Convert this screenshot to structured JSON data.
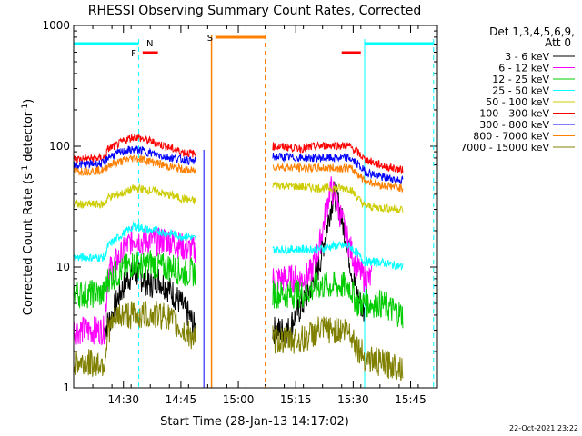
{
  "chart_data": {
    "type": "line",
    "title": "RHESSI Observing Summary Count Rates, Corrected",
    "xlabel": "Start Time (28-Jan-13 14:17:02)",
    "ylabel": "Corrected Count Rate (s",
    "ylabel_sup1": "-1",
    "ylabel_mid": " detector",
    "ylabel_sup2": "-1",
    "ylabel_end": ")",
    "y_scale": "log",
    "ylim": [
      1,
      1000
    ],
    "y_ticks": [
      "1",
      "10",
      "100",
      "1000"
    ],
    "x_ticks": [
      "14:30",
      "14:45",
      "15:00",
      "15:15",
      "15:30",
      "15:45"
    ],
    "xlim_minutes": [
      0,
      95
    ],
    "footer_date": "22-Oct-2021 23:22",
    "legend_header": [
      "Det 1,3,4,5,6,9,",
      "Att 0"
    ],
    "flags": {
      "S": "S",
      "N": "N",
      "F": "F"
    },
    "series": [
      {
        "name": "3 - 6 keV",
        "color": "#000000",
        "values_seg1": [
          [
            8,
            3
          ],
          [
            10,
            4
          ],
          [
            12,
            6
          ],
          [
            14,
            8
          ],
          [
            16,
            9
          ],
          [
            18,
            8
          ],
          [
            20,
            7
          ],
          [
            22,
            8
          ],
          [
            24,
            7
          ],
          [
            26,
            6
          ],
          [
            28,
            5
          ],
          [
            30,
            4
          ],
          [
            32,
            3
          ]
        ],
        "values_seg2": [
          [
            52,
            3
          ],
          [
            54,
            3
          ],
          [
            56,
            3
          ],
          [
            58,
            4
          ],
          [
            60,
            5
          ],
          [
            62,
            7
          ],
          [
            64,
            10
          ],
          [
            65,
            14
          ],
          [
            66,
            20
          ],
          [
            67,
            30
          ],
          [
            68,
            40
          ],
          [
            69,
            35
          ],
          [
            70,
            25
          ],
          [
            71,
            18
          ],
          [
            72,
            12
          ],
          [
            73,
            8
          ],
          [
            74,
            6
          ],
          [
            76,
            4
          ]
        ]
      },
      {
        "name": "6 - 12 keV",
        "color": "#ff00ff",
        "values_seg1": [
          [
            0,
            3
          ],
          [
            8,
            3
          ],
          [
            9,
            9
          ],
          [
            12,
            12
          ],
          [
            14,
            15
          ],
          [
            16,
            18
          ],
          [
            18,
            16
          ],
          [
            20,
            17
          ],
          [
            22,
            16
          ],
          [
            24,
            17
          ],
          [
            26,
            16
          ],
          [
            28,
            15
          ],
          [
            30,
            14
          ],
          [
            32,
            14
          ]
        ],
        "values_seg2": [
          [
            52,
            8
          ],
          [
            56,
            8
          ],
          [
            60,
            8
          ],
          [
            62,
            9
          ],
          [
            64,
            14
          ],
          [
            66,
            30
          ],
          [
            67,
            45
          ],
          [
            68,
            40
          ],
          [
            70,
            25
          ],
          [
            72,
            15
          ],
          [
            74,
            10
          ],
          [
            76,
            8
          ],
          [
            78,
            8
          ]
        ]
      },
      {
        "name": "12 - 25 keV",
        "color": "#00cc00",
        "values_seg1": [
          [
            0,
            6
          ],
          [
            8,
            6
          ],
          [
            9,
            8
          ],
          [
            12,
            9
          ],
          [
            14,
            10
          ],
          [
            16,
            11
          ],
          [
            18,
            10
          ],
          [
            20,
            11
          ],
          [
            22,
            10
          ],
          [
            24,
            10
          ],
          [
            26,
            10
          ],
          [
            28,
            9
          ],
          [
            30,
            9
          ],
          [
            32,
            9
          ]
        ],
        "values_seg2": [
          [
            52,
            6
          ],
          [
            60,
            6
          ],
          [
            64,
            7
          ],
          [
            66,
            7
          ],
          [
            70,
            7
          ],
          [
            72,
            7
          ],
          [
            74,
            5
          ],
          [
            80,
            5
          ],
          [
            86,
            4
          ]
        ]
      },
      {
        "name": "25 - 50 keV",
        "color": "#00ffff",
        "values_seg1": [
          [
            0,
            12
          ],
          [
            8,
            12
          ],
          [
            9,
            15
          ],
          [
            12,
            18
          ],
          [
            14,
            20
          ],
          [
            16,
            22
          ],
          [
            18,
            21
          ],
          [
            20,
            20
          ],
          [
            22,
            20
          ],
          [
            24,
            19
          ],
          [
            26,
            19
          ],
          [
            28,
            18
          ],
          [
            30,
            18
          ],
          [
            32,
            17
          ]
        ],
        "values_seg2": [
          [
            52,
            14
          ],
          [
            56,
            14
          ],
          [
            60,
            14
          ],
          [
            64,
            14
          ],
          [
            68,
            15
          ],
          [
            72,
            15
          ],
          [
            74,
            13
          ],
          [
            76,
            11
          ],
          [
            80,
            11
          ],
          [
            86,
            10
          ]
        ]
      },
      {
        "name": "50 - 100 keV",
        "color": "#cccc00",
        "values_seg1": [
          [
            0,
            33
          ],
          [
            8,
            33
          ],
          [
            9,
            38
          ],
          [
            12,
            40
          ],
          [
            14,
            42
          ],
          [
            16,
            45
          ],
          [
            18,
            44
          ],
          [
            20,
            43
          ],
          [
            22,
            42
          ],
          [
            24,
            40
          ],
          [
            26,
            39
          ],
          [
            28,
            37
          ],
          [
            30,
            36
          ],
          [
            32,
            35
          ]
        ],
        "values_seg2": [
          [
            52,
            48
          ],
          [
            56,
            47
          ],
          [
            60,
            46
          ],
          [
            64,
            45
          ],
          [
            68,
            45
          ],
          [
            72,
            45
          ],
          [
            74,
            38
          ],
          [
            76,
            32
          ],
          [
            80,
            31
          ],
          [
            86,
            30
          ]
        ]
      },
      {
        "name": "100 - 300 keV",
        "color": "#ff0000",
        "values_seg1": [
          [
            0,
            78
          ],
          [
            8,
            80
          ],
          [
            9,
            95
          ],
          [
            12,
            105
          ],
          [
            14,
            115
          ],
          [
            16,
            120
          ],
          [
            18,
            115
          ],
          [
            20,
            110
          ],
          [
            22,
            105
          ],
          [
            24,
            100
          ],
          [
            26,
            95
          ],
          [
            28,
            90
          ],
          [
            30,
            88
          ],
          [
            32,
            86
          ]
        ],
        "values_seg2": [
          [
            52,
            100
          ],
          [
            56,
            98
          ],
          [
            60,
            96
          ],
          [
            64,
            100
          ],
          [
            68,
            102
          ],
          [
            72,
            100
          ],
          [
            74,
            90
          ],
          [
            76,
            78
          ],
          [
            80,
            70
          ],
          [
            86,
            63
          ]
        ]
      },
      {
        "name": "300 - 800 keV",
        "color": "#0000ff",
        "values_seg1": [
          [
            0,
            70
          ],
          [
            8,
            72
          ],
          [
            9,
            82
          ],
          [
            12,
            88
          ],
          [
            14,
            92
          ],
          [
            16,
            94
          ],
          [
            18,
            92
          ],
          [
            20,
            88
          ],
          [
            22,
            85
          ],
          [
            24,
            82
          ],
          [
            26,
            80
          ],
          [
            28,
            78
          ],
          [
            30,
            76
          ],
          [
            32,
            75
          ]
        ],
        "values_seg2": [
          [
            52,
            82
          ],
          [
            56,
            81
          ],
          [
            60,
            80
          ],
          [
            64,
            80
          ],
          [
            68,
            80
          ],
          [
            72,
            80
          ],
          [
            74,
            72
          ],
          [
            76,
            62
          ],
          [
            80,
            56
          ],
          [
            86,
            52
          ]
        ]
      },
      {
        "name": "800 - 7000 keV",
        "color": "#ff8000",
        "values_seg1": [
          [
            0,
            62
          ],
          [
            8,
            63
          ],
          [
            9,
            70
          ],
          [
            12,
            74
          ],
          [
            14,
            78
          ],
          [
            16,
            80
          ],
          [
            18,
            78
          ],
          [
            20,
            75
          ],
          [
            22,
            72
          ],
          [
            24,
            69
          ],
          [
            26,
            67
          ],
          [
            28,
            65
          ],
          [
            30,
            63
          ],
          [
            32,
            62
          ]
        ],
        "values_seg2": [
          [
            52,
            68
          ],
          [
            56,
            67
          ],
          [
            60,
            66
          ],
          [
            64,
            66
          ],
          [
            68,
            66
          ],
          [
            72,
            66
          ],
          [
            74,
            60
          ],
          [
            76,
            52
          ],
          [
            80,
            48
          ],
          [
            86,
            45
          ]
        ]
      },
      {
        "name": "7000 - 15000 keV",
        "color": "#808000",
        "values_seg1": [
          [
            0,
            1.6
          ],
          [
            8,
            1.6
          ],
          [
            9,
            3
          ],
          [
            12,
            4
          ],
          [
            14,
            4
          ],
          [
            16,
            4
          ],
          [
            18,
            4
          ],
          [
            20,
            4
          ],
          [
            22,
            4
          ],
          [
            24,
            4
          ],
          [
            26,
            3.5
          ],
          [
            28,
            3
          ],
          [
            30,
            2.8
          ],
          [
            32,
            2.6
          ]
        ],
        "values_seg2": [
          [
            52,
            2.5
          ],
          [
            56,
            2.5
          ],
          [
            60,
            2.5
          ],
          [
            64,
            3
          ],
          [
            68,
            3
          ],
          [
            72,
            3
          ],
          [
            74,
            2.2
          ],
          [
            76,
            1.8
          ],
          [
            80,
            1.6
          ],
          [
            86,
            1.5
          ]
        ]
      }
    ],
    "bars_minutes": {
      "cyan_left": [
        0,
        17
      ],
      "cyan_right": [
        76,
        94
      ],
      "orange_S": [
        37,
        50
      ],
      "red_F": [
        18,
        22
      ],
      "red_right": [
        70,
        75
      ]
    },
    "vlines_minutes": {
      "cyan_dashed": [
        17,
        94
      ],
      "cyan_solid": [
        76
      ],
      "orange_solid": [
        36
      ],
      "orange_dashed": [
        50
      ],
      "blue_solid": [
        34
      ]
    }
  }
}
